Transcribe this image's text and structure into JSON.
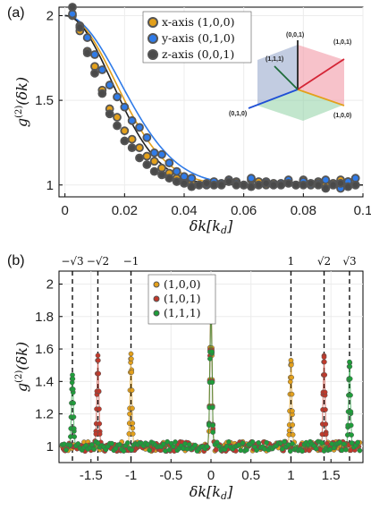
{
  "colors": {
    "gold": "#e3a01b",
    "blue": "#2f7be8",
    "gray": "#4a4a4a",
    "red": "#c0392b",
    "green": "#1e9e3a"
  },
  "chart_data": [
    {
      "panel": "(a)",
      "type": "scatter",
      "xlabel": "δk[k_d]",
      "ylabel": "g^(2)(δk)",
      "xlim": [
        -0.002,
        0.1
      ],
      "ylim": [
        0.93,
        2.05
      ],
      "xticks": [
        "0",
        "0.02",
        "0.04",
        "0.06",
        "0.08",
        "0.1"
      ],
      "yticks": [
        "1",
        "1.5",
        "2"
      ],
      "legend_position": "top-center",
      "series": [
        {
          "name": "x-axis (1,0,0)",
          "color": "#e3a01b",
          "x": [
            0.0025,
            0.005,
            0.0075,
            0.01,
            0.0125,
            0.015,
            0.0175,
            0.02,
            0.0225,
            0.025,
            0.0275,
            0.03,
            0.0325,
            0.035,
            0.0375,
            0.04,
            0.0425,
            0.045,
            0.0475,
            0.05,
            0.0525,
            0.055,
            0.0575,
            0.06,
            0.0625,
            0.065,
            0.0675,
            0.07,
            0.0725,
            0.075,
            0.0775,
            0.08,
            0.0825,
            0.085,
            0.0875,
            0.09,
            0.0925,
            0.095,
            0.0975
          ],
          "y": [
            2.0,
            1.91,
            1.79,
            1.7,
            1.56,
            1.45,
            1.4,
            1.32,
            1.27,
            1.22,
            1.17,
            1.14,
            1.1,
            1.07,
            1.04,
            1.02,
            1.01,
            1.0,
            1.0,
            1.0,
            1.0,
            1.03,
            1.02,
            1.0,
            1.03,
            1.02,
            1.0,
            1.01,
            1.0,
            1.02,
            1.0,
            1.03,
            1.0,
            1.02,
            1.0,
            1.01,
            1.03,
            1.02,
            1.0
          ]
        },
        {
          "name": "y-axis (0,1,0)",
          "color": "#2f7be8",
          "x": [
            0.0025,
            0.005,
            0.0075,
            0.01,
            0.0125,
            0.015,
            0.0175,
            0.02,
            0.0225,
            0.025,
            0.0275,
            0.03,
            0.0325,
            0.035,
            0.0375,
            0.04,
            0.0425,
            0.045,
            0.0475,
            0.05,
            0.0525,
            0.055,
            0.0575,
            0.06,
            0.0625,
            0.065,
            0.0675,
            0.07,
            0.0725,
            0.075,
            0.0775,
            0.08,
            0.0825,
            0.085,
            0.0875,
            0.09,
            0.0925,
            0.095,
            0.0975
          ],
          "y": [
            2.01,
            1.94,
            1.87,
            1.77,
            1.68,
            1.59,
            1.52,
            1.46,
            1.38,
            1.34,
            1.28,
            1.19,
            1.18,
            1.13,
            1.08,
            1.05,
            1.04,
            1.0,
            1.0,
            1.02,
            1.01,
            1.03,
            1.01,
            1.0,
            1.04,
            1.0,
            1.02,
            1.0,
            1.01,
            1.03,
            1.0,
            1.02,
            1.0,
            1.01,
            1.03,
            1.0,
            0.98,
            1.02,
            1.04
          ]
        },
        {
          "name": "z-axis (0,0,1)",
          "color": "#4a4a4a",
          "x": [
            0.0025,
            0.005,
            0.0075,
            0.01,
            0.0125,
            0.015,
            0.0175,
            0.02,
            0.0225,
            0.025,
            0.0275,
            0.03,
            0.0325,
            0.035,
            0.0375,
            0.04,
            0.0425,
            0.045,
            0.0475,
            0.05,
            0.0525,
            0.055,
            0.0575,
            0.06,
            0.0625,
            0.065,
            0.0675,
            0.07,
            0.0725,
            0.075,
            0.0775,
            0.08,
            0.0825,
            0.085,
            0.0875,
            0.09,
            0.0925,
            0.095,
            0.0975
          ],
          "y": [
            2.05,
            1.93,
            1.78,
            1.66,
            1.54,
            1.42,
            1.35,
            1.26,
            1.22,
            1.16,
            1.12,
            1.08,
            1.06,
            1.04,
            1.02,
            1.01,
            0.99,
            1.0,
            1.01,
            1.0,
            1.0,
            1.02,
            1.0,
            1.0,
            0.99,
            1.0,
            1.01,
            1.0,
            1.0,
            1.01,
            1.0,
            1.0,
            1.01,
            1.0,
            0.98,
            1.0,
            1.01,
            0.99,
            1.0
          ]
        }
      ],
      "inset": {
        "labels": {
          "top": "(0,0,1)",
          "diag": "(1,1,1)",
          "right": "(1,0,1)",
          "left": "(0,1,0)",
          "bottom": "(1,0,0)"
        }
      }
    },
    {
      "panel": "(b)",
      "type": "line",
      "xlabel": "δk[k_d]",
      "ylabel": "g^(2)(δk)",
      "xlim": [
        -1.9,
        1.9
      ],
      "ylim": [
        0.9,
        2.08
      ],
      "xticks": [
        "-1.5",
        "-1",
        "-0.5",
        "0",
        "0.5",
        "1",
        "1.5"
      ],
      "yticks": [
        "1",
        "1.2",
        "1.4",
        "1.6",
        "1.8",
        "2"
      ],
      "legend_position": "top-center",
      "annotations": [
        {
          "x": -1.732,
          "label": "−√3"
        },
        {
          "x": -1.414,
          "label": "−√2"
        },
        {
          "x": -1.0,
          "label": "−1"
        },
        {
          "x": 1.0,
          "label": "1"
        },
        {
          "x": 1.414,
          "label": "√2"
        },
        {
          "x": 1.732,
          "label": "√3"
        }
      ],
      "series": [
        {
          "name": "(1,0,0)",
          "color": "#e3a01b",
          "peaks": [
            {
              "x": -1.0,
              "height": 1.57
            },
            {
              "x": 0.0,
              "height": 2.0
            },
            {
              "x": 1.0,
              "height": 1.53
            }
          ]
        },
        {
          "name": "(1,0,1)",
          "color": "#c0392b",
          "peaks": [
            {
              "x": -1.414,
              "height": 1.56
            },
            {
              "x": 0.0,
              "height": 1.98
            },
            {
              "x": 1.414,
              "height": 1.55
            }
          ]
        },
        {
          "name": "(1,1,1)",
          "color": "#1e9e3a",
          "peaks": [
            {
              "x": -1.732,
              "height": 1.44
            },
            {
              "x": 0.0,
              "height": 1.96
            },
            {
              "x": 1.732,
              "height": 1.52
            }
          ]
        }
      ]
    }
  ]
}
